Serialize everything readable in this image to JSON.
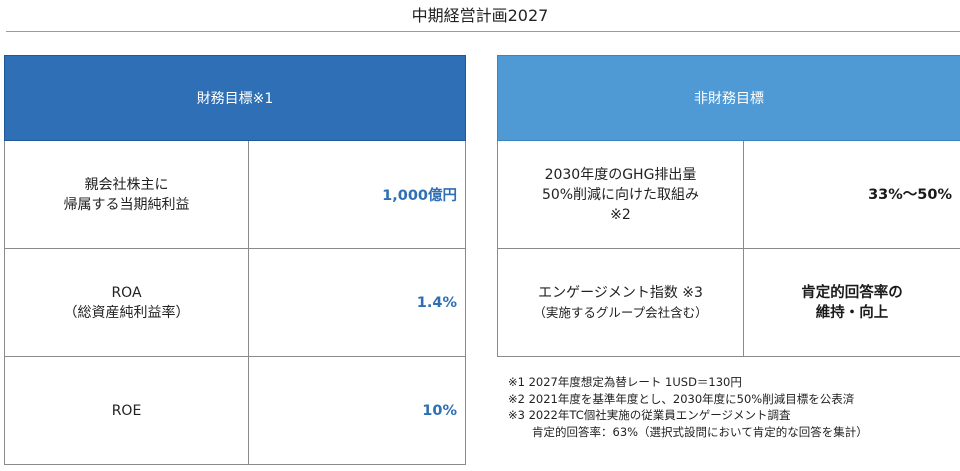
{
  "title": "中期経営計画2027",
  "financial": {
    "header": "財務目標※1",
    "rows": [
      {
        "label_line1": "親会社株主に",
        "label_line2": "帰属する当期純利益",
        "value": "1,000億円"
      },
      {
        "label_line1": "ROA",
        "label_line2": "（総資産純利益率）",
        "value": "1.4%"
      },
      {
        "label_line1": "ROE",
        "value": "10%"
      }
    ]
  },
  "non_financial": {
    "header": "非財務目標",
    "rows": [
      {
        "label_line1": "2030年度のGHG排出量",
        "label_line2": "50%削減に向けた取組み",
        "label_line3": "※2",
        "value": "33%～50%"
      },
      {
        "label_line1": "エンゲージメント指数 ※3",
        "label_sub": "（実施するグループ会社含む）",
        "value_line1": "肯定的回答率の",
        "value_line2": "維持・向上"
      }
    ]
  },
  "notes": [
    "※1 2027年度想定為替レート 1USD＝130円",
    "※2 2021年度を基準年度とし、2030年度に50%削減目標を公表済",
    "※3 2022年TC個社実施の従業員エンゲージメント調査",
    "肯定的回答率：63%（選択式設問において肯定的な回答を集計）"
  ],
  "colors": {
    "financial_header": "#2e6fb5",
    "non_financial_header": "#4f9ad5",
    "financial_value": "#2e6fb5"
  }
}
